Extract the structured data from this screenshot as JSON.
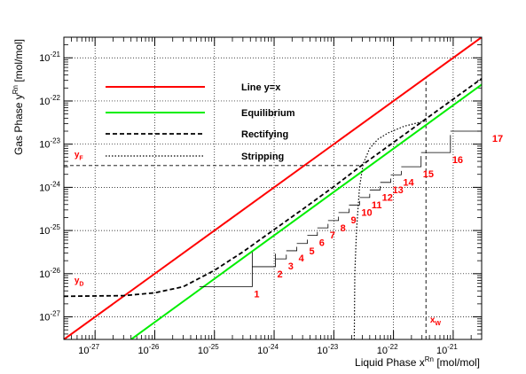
{
  "chart_data": {
    "type": "line",
    "xlabel": "Liquid Phase x",
    "xlabel_sup": "Rn",
    "xlabel_unit": " [mol/mol]",
    "ylabel": "Gas Phase y",
    "ylabel_sup": "Rn",
    "ylabel_unit": " [mol/mol]",
    "x_scale": "log",
    "y_scale": "log",
    "xlim": [
      3e-28,
      3e-21
    ],
    "ylim": [
      3e-28,
      3e-21
    ],
    "x_ticks": [
      {
        "value": 1e-27,
        "base": "10",
        "exp": "-27"
      },
      {
        "value": 1e-26,
        "base": "10",
        "exp": "-26"
      },
      {
        "value": 1e-25,
        "base": "10",
        "exp": "-25"
      },
      {
        "value": 1e-24,
        "base": "10",
        "exp": "-24"
      },
      {
        "value": 1e-23,
        "base": "10",
        "exp": "-23"
      },
      {
        "value": 1e-22,
        "base": "10",
        "exp": "-22"
      },
      {
        "value": 1e-21,
        "base": "10",
        "exp": "-21"
      }
    ],
    "y_ticks": [
      {
        "value": 1e-27,
        "base": "10",
        "exp": "-27"
      },
      {
        "value": 1e-26,
        "base": "10",
        "exp": "-26"
      },
      {
        "value": 1e-25,
        "base": "10",
        "exp": "-25"
      },
      {
        "value": 1e-24,
        "base": "10",
        "exp": "-24"
      },
      {
        "value": 1e-23,
        "base": "10",
        "exp": "-23"
      },
      {
        "value": 1e-22,
        "base": "10",
        "exp": "-22"
      },
      {
        "value": 1e-21,
        "base": "10",
        "exp": "-21"
      }
    ],
    "grid": true,
    "legend_position": "top-left",
    "series": [
      {
        "name": "Line y=x",
        "color": "#ff0000",
        "style": "solid",
        "x": [
          3e-28,
          3e-21
        ],
        "y": [
          3e-28,
          3e-21
        ]
      },
      {
        "name": "Equilibrium",
        "color": "#00ee00",
        "style": "solid",
        "x": [
          4e-27,
          3e-21
        ],
        "y": [
          3e-28,
          2.4e-22
        ]
      },
      {
        "name": "Rectifying",
        "color": "#000000",
        "style": "dashed",
        "x": [
          3e-28,
          3e-27,
          1e-26,
          3e-26,
          1e-25,
          3e-25,
          1e-24,
          3e-24,
          1e-23,
          3e-23,
          1e-22,
          3e-22,
          3e-21
        ],
        "y": [
          3e-27,
          3.1e-27,
          3.6e-27,
          5e-27,
          1.2e-26,
          3.2e-26,
          1.05e-25,
          3.1e-25,
          1.04e-24,
          3.3e-24,
          1.1e-23,
          3.3e-23,
          3.3e-22
        ]
      },
      {
        "name": "Stripping",
        "color": "#000000",
        "style": "dotted",
        "x": [
          2.2e-23,
          2.25e-23,
          2.4e-23,
          2.7e-23,
          3.1e-23,
          4e-23,
          5.5e-23,
          8e-23,
          1.5e-22,
          3.5e-22
        ],
        "y": [
          3e-28,
          1e-26,
          1e-25,
          1e-24,
          3.5e-24,
          8e-24,
          1.3e-23,
          1.8e-23,
          2.6e-23,
          3.5e-23
        ]
      }
    ],
    "feed_line": {
      "y": 3.2e-24,
      "x_end": 2.7e-23
    },
    "bottoms_line": {
      "x": 3.5e-22
    },
    "stage_steps": [
      {
        "label": "1",
        "x_left": 5.6e-26,
        "x_right": 4.3e-25,
        "y": 5e-27
      },
      {
        "label": "2",
        "x_left": 4.3e-25,
        "x_right": 1.05e-24,
        "y": 1.45e-26
      },
      {
        "label": "3",
        "x_left": 1.05e-24,
        "x_right": 1.6e-24,
        "y": 2.2e-26
      },
      {
        "label": "4",
        "x_left": 1.6e-24,
        "x_right": 2.4e-24,
        "y": 3.4e-26
      },
      {
        "label": "5",
        "x_left": 2.4e-24,
        "x_right": 3.6e-24,
        "y": 5e-26
      },
      {
        "label": "6",
        "x_left": 3.6e-24,
        "x_right": 5.3e-24,
        "y": 7.7e-26
      },
      {
        "label": "7",
        "x_left": 5.3e-24,
        "x_right": 8e-24,
        "y": 1.15e-25
      },
      {
        "label": "8",
        "x_left": 8e-24,
        "x_right": 1.2e-23,
        "y": 1.7e-25
      },
      {
        "label": "9",
        "x_left": 1.2e-23,
        "x_right": 1.8e-23,
        "y": 2.6e-25
      },
      {
        "label": "10",
        "x_left": 1.8e-23,
        "x_right": 2.7e-23,
        "y": 3.9e-25
      },
      {
        "label": "11",
        "x_left": 2.7e-23,
        "x_right": 4e-23,
        "y": 5.8e-25
      },
      {
        "label": "12",
        "x_left": 4e-23,
        "x_right": 6e-23,
        "y": 8.7e-25
      },
      {
        "label": "13",
        "x_left": 6e-23,
        "x_right": 9e-23,
        "y": 1.3e-24
      },
      {
        "label": "14",
        "x_left": 9e-23,
        "x_right": 1.35e-22,
        "y": 1.95e-24
      },
      {
        "label": "15",
        "x_left": 1.35e-22,
        "x_right": 2.9e-22,
        "y": 3e-24
      },
      {
        "label": "16",
        "x_left": 2.9e-22,
        "x_right": 9e-22,
        "y": 6.4e-24
      },
      {
        "label": "17",
        "x_left": 9e-22,
        "x_right": 4.2e-21,
        "y": 2e-23
      }
    ],
    "stage_label_color": "#ff0000",
    "annotations": [
      {
        "id": "yF",
        "base": "y",
        "sub": "F",
        "color": "#ff0000",
        "x": 4.5e-28,
        "y": 5e-24
      },
      {
        "id": "yD",
        "base": "y",
        "sub": "D",
        "color": "#ff0000",
        "x": 4.5e-28,
        "y": 6e-27
      },
      {
        "id": "xW",
        "base": "x",
        "sub": "W",
        "color": "#ff0000",
        "x": 4.1e-22,
        "y": 7.4e-28
      }
    ]
  }
}
